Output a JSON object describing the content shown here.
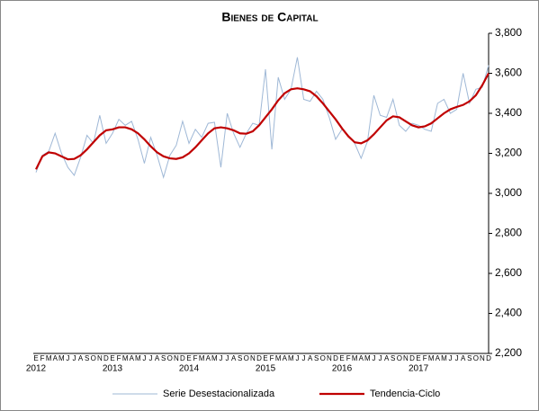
{
  "chart_data": {
    "type": "line",
    "title": "Bienes de Capital",
    "categories": [
      "E",
      "F",
      "M",
      "A",
      "M",
      "J",
      "J",
      "A",
      "S",
      "O",
      "N",
      "D",
      "E",
      "F",
      "M",
      "A",
      "M",
      "J",
      "J",
      "A",
      "S",
      "O",
      "N",
      "D",
      "E",
      "F",
      "M",
      "A",
      "M",
      "J",
      "J",
      "A",
      "S",
      "O",
      "N",
      "D",
      "E",
      "F",
      "M",
      "A",
      "M",
      "J",
      "J",
      "A",
      "S",
      "O",
      "N",
      "D",
      "E",
      "F",
      "M",
      "A",
      "M",
      "J",
      "J",
      "A",
      "S",
      "O",
      "N",
      "D",
      "E",
      "F",
      "M",
      "A",
      "M",
      "J",
      "J",
      "A",
      "S",
      "O",
      "N",
      "D"
    ],
    "years": [
      "2012",
      "2013",
      "2014",
      "2015",
      "2016",
      "2017"
    ],
    "series": [
      {
        "name": "Serie Desestacionalizada",
        "color": "#9fb8d6",
        "values": [
          3105,
          3190,
          3210,
          3300,
          3200,
          3130,
          3090,
          3180,
          3290,
          3250,
          3390,
          3250,
          3300,
          3370,
          3340,
          3360,
          3270,
          3150,
          3280,
          3190,
          3080,
          3190,
          3240,
          3360,
          3250,
          3320,
          3280,
          3350,
          3355,
          3130,
          3400,
          3300,
          3230,
          3300,
          3350,
          3340,
          3620,
          3220,
          3580,
          3470,
          3520,
          3680,
          3470,
          3460,
          3510,
          3470,
          3380,
          3270,
          3320,
          3290,
          3250,
          3175,
          3260,
          3490,
          3390,
          3380,
          3470,
          3340,
          3310,
          3350,
          3340,
          3320,
          3310,
          3450,
          3470,
          3400,
          3420,
          3600,
          3450,
          3520,
          3530,
          3640
        ]
      },
      {
        "name": "Tendencia-Ciclo",
        "color": "#c00000",
        "values": [
          3120,
          3185,
          3205,
          3200,
          3185,
          3170,
          3172,
          3190,
          3220,
          3255,
          3290,
          3315,
          3320,
          3330,
          3330,
          3320,
          3300,
          3270,
          3235,
          3205,
          3185,
          3175,
          3172,
          3180,
          3200,
          3230,
          3265,
          3300,
          3325,
          3330,
          3325,
          3315,
          3300,
          3298,
          3310,
          3340,
          3380,
          3420,
          3465,
          3500,
          3520,
          3525,
          3520,
          3510,
          3485,
          3450,
          3410,
          3370,
          3325,
          3285,
          3255,
          3250,
          3265,
          3295,
          3330,
          3365,
          3385,
          3380,
          3360,
          3340,
          3330,
          3335,
          3350,
          3375,
          3400,
          3420,
          3432,
          3442,
          3460,
          3490,
          3540,
          3600
        ]
      }
    ],
    "ylim": [
      2200,
      3800
    ],
    "yticks": [
      {
        "value": 2200,
        "label": "2,200"
      },
      {
        "value": 2400,
        "label": "2,400"
      },
      {
        "value": 2600,
        "label": "2,600"
      },
      {
        "value": 2800,
        "label": "2,800"
      },
      {
        "value": 3000,
        "label": "3,000"
      },
      {
        "value": 3200,
        "label": "3,200"
      },
      {
        "value": 3400,
        "label": "3,400"
      },
      {
        "value": 3600,
        "label": "3,600"
      },
      {
        "value": 3800,
        "label": "3,800"
      }
    ],
    "grid": false
  }
}
